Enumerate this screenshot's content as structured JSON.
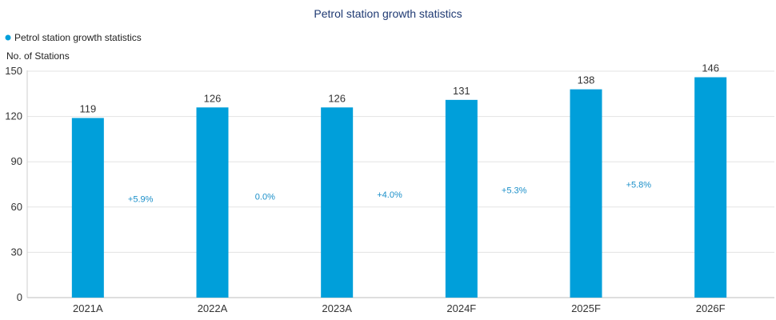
{
  "chart_data": {
    "type": "bar",
    "title": "Petrol station growth statistics",
    "ylabel": "No. of Stations",
    "xlabel": "",
    "categories": [
      "2021A",
      "2022A",
      "2023A",
      "2024F",
      "2025F",
      "2026F"
    ],
    "series": [
      {
        "name": "Petrol station growth statistics",
        "values": [
          119,
          126,
          126,
          131,
          138,
          146
        ]
      }
    ],
    "growth_labels": [
      "+5.9%",
      "0.0%",
      "+4.0%",
      "+5.3%",
      "+5.8%"
    ],
    "ylim": [
      0,
      150
    ],
    "yticks": [
      0,
      30,
      60,
      90,
      120,
      150
    ],
    "grid": true,
    "legend": "top-left",
    "colors": {
      "bar": "#009fda",
      "growth_text": "#1a8fc9",
      "grid": "#e3e3e3",
      "title": "#1f3a73"
    }
  }
}
